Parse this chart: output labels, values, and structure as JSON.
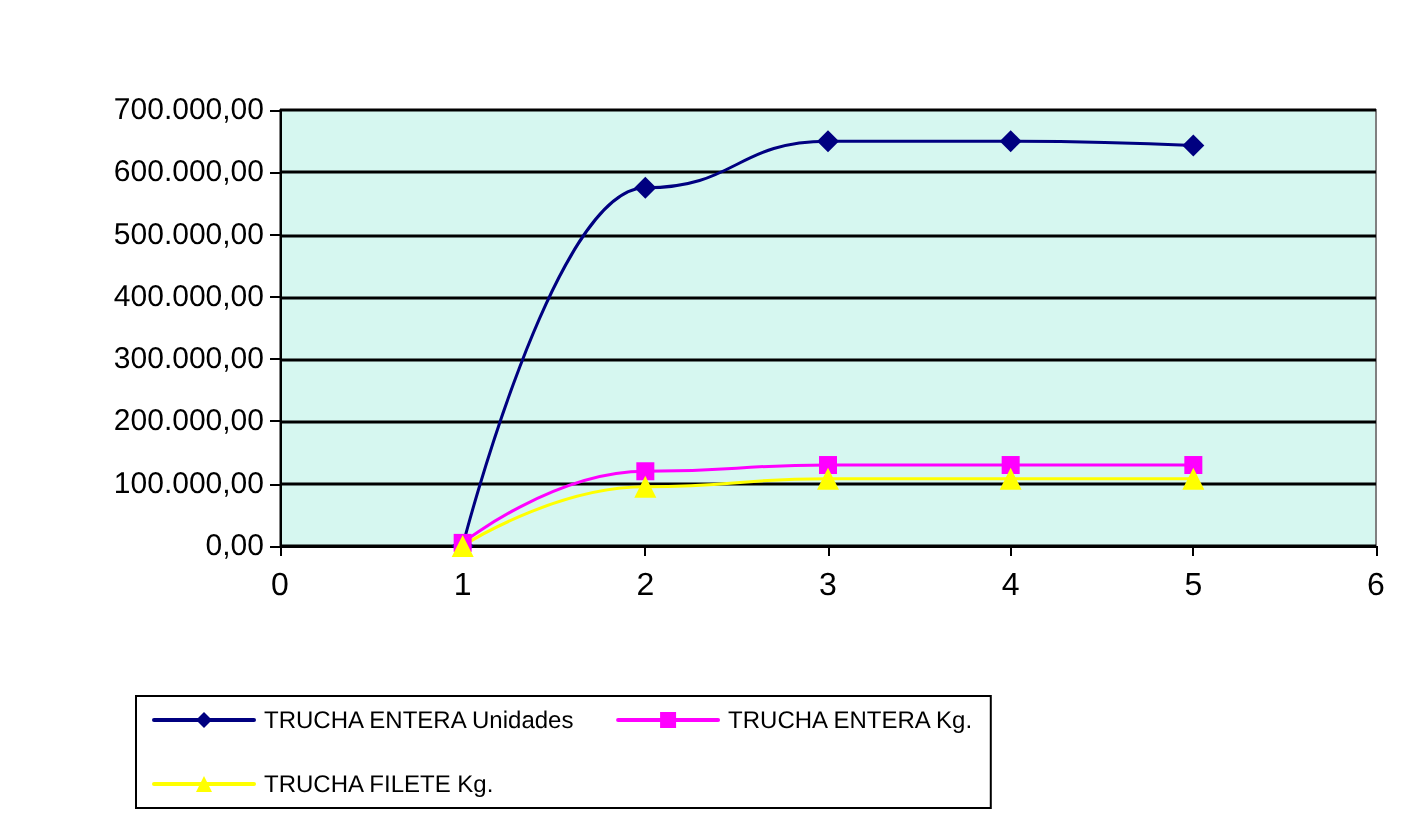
{
  "chart_data": {
    "type": "line",
    "x": [
      1,
      2,
      3,
      4,
      5
    ],
    "series": [
      {
        "name": "TRUCHA ENTERA Unidades",
        "color": "#000080",
        "marker": "diamond",
        "values": [
          0,
          575000,
          650000,
          650000,
          643000
        ]
      },
      {
        "name": "TRUCHA ENTERA Kg.",
        "color": "#ff00ff",
        "marker": "square",
        "values": [
          5000,
          120000,
          130000,
          130000,
          130000
        ]
      },
      {
        "name": "TRUCHA FILETE Kg.",
        "color": "#ffff00",
        "marker": "triangle",
        "values": [
          0,
          95000,
          108000,
          108000,
          108000
        ]
      }
    ],
    "xlim": [
      0,
      6
    ],
    "xticks": [
      0,
      1,
      2,
      3,
      4,
      5,
      6
    ],
    "ylim": [
      0,
      700000
    ],
    "yticks": [
      {
        "value": 0,
        "label": "0,00"
      },
      {
        "value": 100000,
        "label": "100.000,00"
      },
      {
        "value": 200000,
        "label": "200.000,00"
      },
      {
        "value": 300000,
        "label": "300.000,00"
      },
      {
        "value": 400000,
        "label": "400.000,00"
      },
      {
        "value": 500000,
        "label": "500.000,00"
      },
      {
        "value": 600000,
        "label": "600.000,00"
      },
      {
        "value": 700000,
        "label": "700.000,00"
      }
    ],
    "grid": "y",
    "legend": "bottom"
  }
}
